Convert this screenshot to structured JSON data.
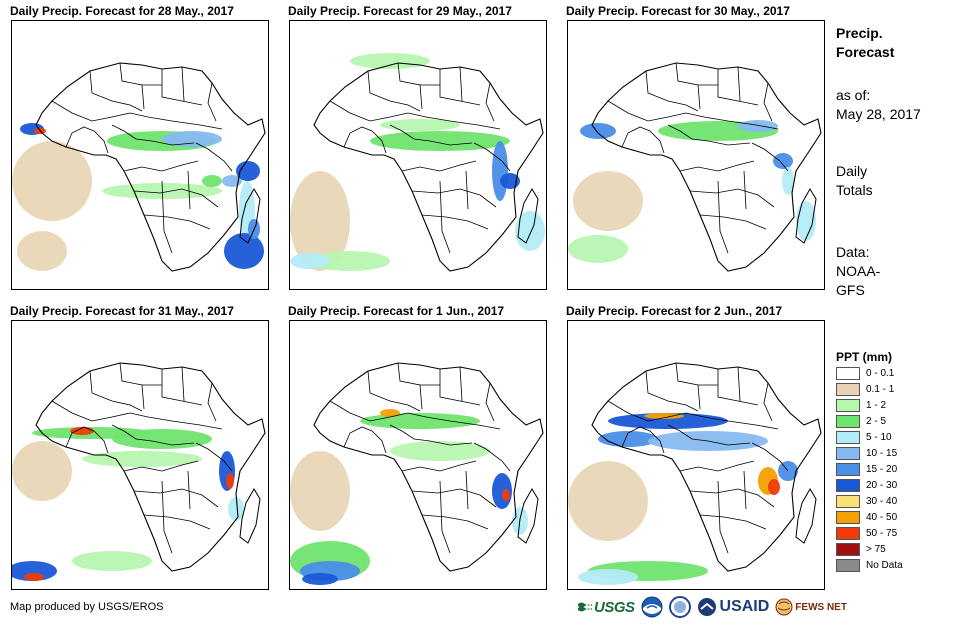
{
  "panels": [
    {
      "title": "Daily Precip. Forecast for 28 May., 2017",
      "rain_pattern": "west-africa-coast-heavy, east-africa-moderate, southeast-ocean-heavy"
    },
    {
      "title": "Daily Precip. Forecast for 29 May., 2017",
      "rain_pattern": "sahel-light, equatorial-moderate, mozambique-channel-heavy"
    },
    {
      "title": "Daily Precip. Forecast for 30 May., 2017",
      "rain_pattern": "west-africa-coast-moderate, equatorial-band, southwest-ocean-light"
    },
    {
      "title": "Daily Precip. Forecast for 31 May., 2017",
      "rain_pattern": "west-africa-band-heavy, mozambique-coast-heavy, southwest-ocean-heavy"
    },
    {
      "title": "Daily Precip. Forecast for 1 Jun., 2017",
      "rain_pattern": "sahel-band, tanzania-coast-heavy, southwest-ocean-heavy"
    },
    {
      "title": "Daily Precip. Forecast for 2 Jun., 2017",
      "rain_pattern": "gulf-of-guinea-heavy, east-africa-heavy, southwest-ocean-moderate"
    }
  ],
  "sidebar": {
    "heading_line1": "Precip.",
    "heading_line2": "Forecast",
    "asof_label": "as of:",
    "asof_date": "May 28, 2017",
    "totals_line1": "Daily",
    "totals_line2": "Totals",
    "data_line1": "Data:",
    "data_line2": "NOAA-",
    "data_line3": "GFS"
  },
  "legend": {
    "title": "PPT (mm)",
    "items": [
      {
        "label": "0 - 0.1",
        "color": "#ffffff"
      },
      {
        "label": "0.1 - 1",
        "color": "#e8d4b4"
      },
      {
        "label": "1 - 2",
        "color": "#b7f5b0"
      },
      {
        "label": "2 - 5",
        "color": "#6fe46f"
      },
      {
        "label": "5 - 10",
        "color": "#b3ecf5"
      },
      {
        "label": "10 - 15",
        "color": "#87b9f0"
      },
      {
        "label": "15 - 20",
        "color": "#4a8ee8"
      },
      {
        "label": "20 - 30",
        "color": "#1a58d8"
      },
      {
        "label": "30 - 40",
        "color": "#fae07a"
      },
      {
        "label": "40 - 50",
        "color": "#f5a000"
      },
      {
        "label": "50 - 75",
        "color": "#f03c0a"
      },
      {
        "label": "> 75",
        "color": "#a01010"
      },
      {
        "label": "No Data",
        "color": "#8a8a8a"
      }
    ]
  },
  "credit": "Map produced by USGS/EROS",
  "logos": {
    "usgs": "USGS",
    "usaid": "USAID",
    "fews": "FEWS NET"
  }
}
